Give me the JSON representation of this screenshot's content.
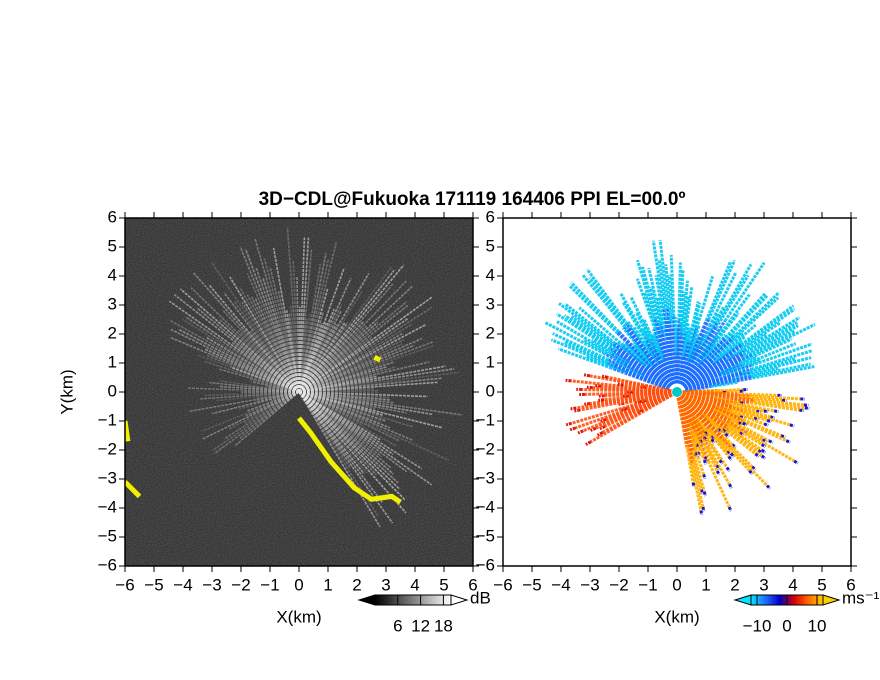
{
  "title": "3D−CDL@Fukuoka 171119 164406 PPI EL=00.0º",
  "chart_data": [
    {
      "type": "ppi",
      "xlabel": "X(km)",
      "ylabel": "Y(km)",
      "xlim": [
        -6,
        6
      ],
      "ylim": [
        -6,
        6
      ],
      "xticks": [
        {
          "value": -6,
          "label": "−6"
        },
        {
          "value": -5,
          "label": "−5"
        },
        {
          "value": -4,
          "label": "−4"
        },
        {
          "value": -3,
          "label": "−3"
        },
        {
          "value": -2,
          "label": "−2"
        },
        {
          "value": -1,
          "label": "−1"
        },
        0,
        1,
        2,
        3,
        4,
        5,
        6
      ],
      "yticks": [
        {
          "value": -6,
          "label": "−6"
        },
        {
          "value": -5,
          "label": "−5"
        },
        {
          "value": -4,
          "label": "−4"
        },
        {
          "value": -3,
          "label": "−3"
        },
        {
          "value": -2,
          "label": "−2"
        },
        {
          "value": -1,
          "label": "−1"
        },
        0,
        1,
        2,
        3,
        4,
        5,
        6
      ],
      "colorbar": {
        "unit": "dB",
        "clim": [
          0,
          20
        ],
        "ticks": [
          6,
          12,
          18
        ],
        "colormap": [
          "#000000",
          "#555555",
          "#aaaaaa",
          "#ffffff"
        ]
      }
    },
    {
      "type": "ppi",
      "xlabel": "X(km)",
      "xlim": [
        -6,
        6
      ],
      "ylim": [
        -6,
        6
      ],
      "xticks": [
        {
          "value": -6,
          "label": "−6"
        },
        {
          "value": -5,
          "label": "−5"
        },
        {
          "value": -4,
          "label": "−4"
        },
        {
          "value": -3,
          "label": "−3"
        },
        {
          "value": -2,
          "label": "−2"
        },
        {
          "value": -1,
          "label": "−1"
        },
        0,
        1,
        2,
        3,
        4,
        5,
        6
      ],
      "yticks": [
        {
          "value": -6,
          "label": "−6"
        },
        {
          "value": -5,
          "label": "−5"
        },
        {
          "value": -4,
          "label": "−4"
        },
        {
          "value": -3,
          "label": "−3"
        },
        {
          "value": -2,
          "label": "−2"
        },
        {
          "value": -1,
          "label": "−1"
        },
        0,
        1,
        2,
        3,
        4,
        5,
        6
      ],
      "colorbar": {
        "unit": "ms⁻¹",
        "clim": [
          -12,
          12
        ],
        "ticks": [
          {
            "value": -10,
            "label": "−10"
          },
          0,
          10
        ],
        "colormap": [
          "#00e5ff",
          "#1e6fff",
          "#0000c8",
          "#d80000",
          "#ff6a00",
          "#ffd000"
        ]
      }
    }
  ]
}
